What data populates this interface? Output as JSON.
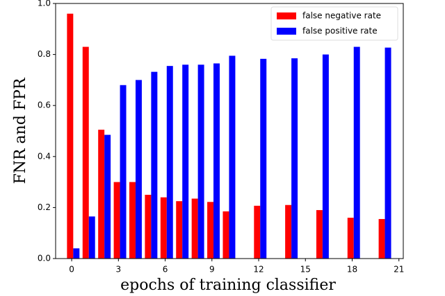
{
  "chart_data": {
    "type": "bar",
    "xlabel": "epochs of training classifier",
    "ylabel": "FNR and FPR",
    "x": [
      0,
      1,
      2,
      3,
      4,
      5,
      6,
      7,
      8,
      9,
      10,
      12,
      14,
      16,
      18,
      20
    ],
    "series": [
      {
        "name": "false negative rate",
        "color": "#ff0000",
        "values": [
          0.96,
          0.83,
          0.505,
          0.3,
          0.3,
          0.25,
          0.24,
          0.225,
          0.235,
          0.222,
          0.185,
          0.207,
          0.21,
          0.19,
          0.16,
          0.155
        ]
      },
      {
        "name": "false positive rate",
        "color": "#0000ff",
        "values": [
          0.04,
          0.165,
          0.485,
          0.68,
          0.7,
          0.732,
          0.755,
          0.76,
          0.76,
          0.765,
          0.795,
          0.783,
          0.785,
          0.8,
          0.83,
          0.827
        ]
      }
    ],
    "xlim": [
      -1.03,
      21.28
    ],
    "xticks": [
      0,
      3,
      6,
      9,
      12,
      15,
      18,
      21
    ],
    "ylim": [
      0,
      1
    ],
    "yticks": [
      {
        "value": 0,
        "label": "0.0"
      },
      0.2,
      0.4,
      0.6,
      0.8,
      {
        "value": 1,
        "label": "1.0"
      }
    ],
    "legend": "upper right"
  }
}
